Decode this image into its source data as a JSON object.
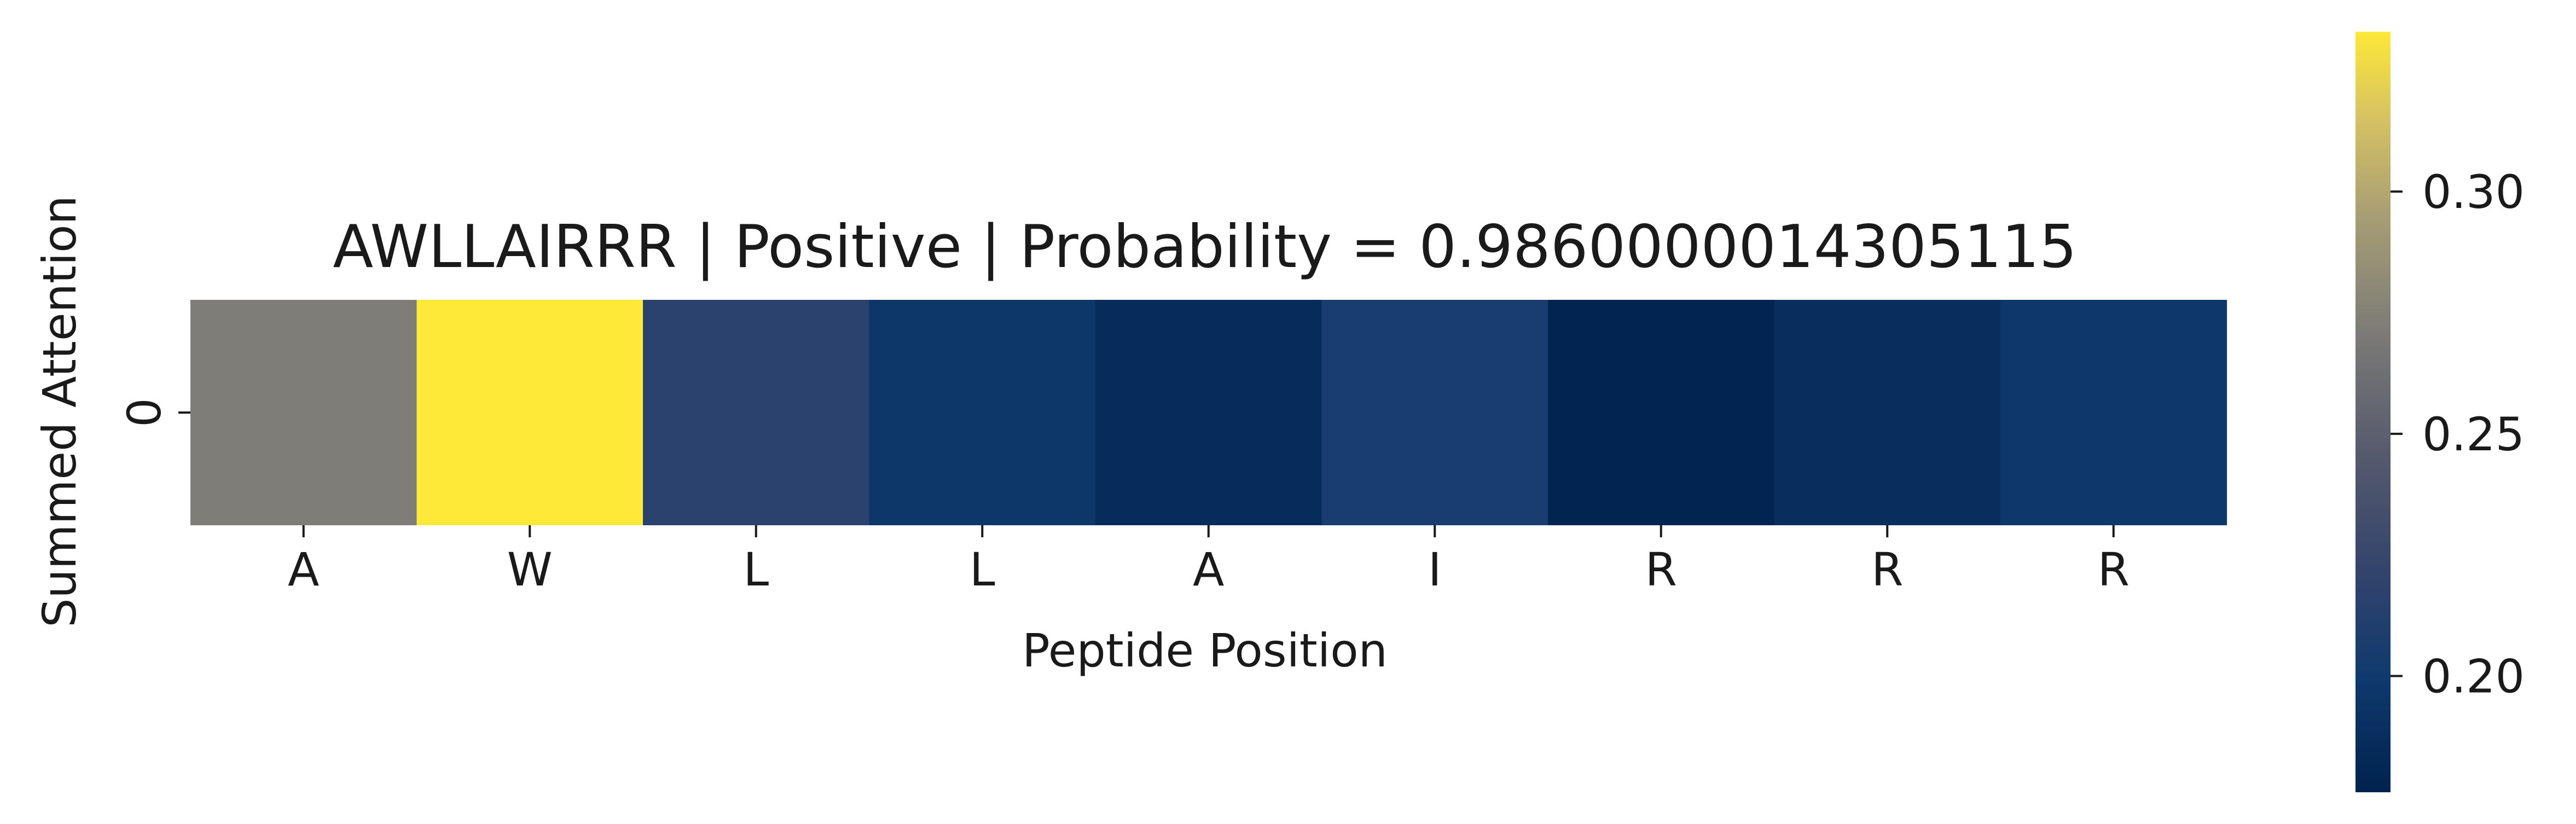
{
  "chart_data": {
    "type": "heatmap",
    "title": "AWLLAIRRR | Positive | Probability = 0.9860000014305115",
    "xlabel": "Peptide Position",
    "ylabel": "Summed Attention",
    "x_ticks": [
      "A",
      "W",
      "L",
      "L",
      "A",
      "I",
      "R",
      "R",
      "R"
    ],
    "y_ticks": [
      "0"
    ],
    "values": [
      [
        0.272,
        0.333,
        0.216,
        0.196,
        0.186,
        0.205,
        0.178,
        0.188,
        0.198
      ]
    ],
    "colormap": "cividis",
    "colorbar": {
      "range": [
        0.176,
        0.333
      ],
      "ticks": [
        0.2,
        0.25,
        0.3
      ],
      "tick_labels": [
        "0.20",
        "0.25",
        "0.30"
      ]
    }
  }
}
